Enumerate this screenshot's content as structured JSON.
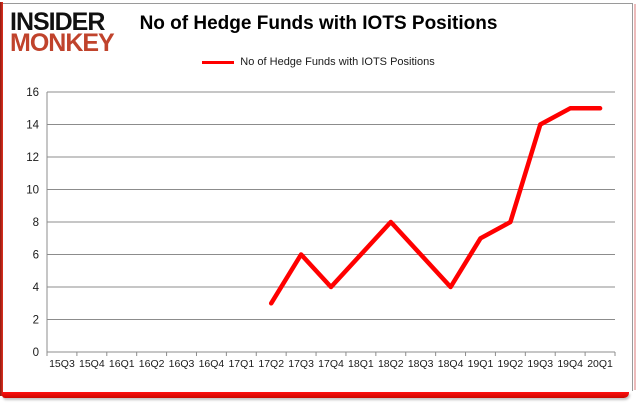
{
  "logo": {
    "line1": "INSIDER",
    "line2": "MONKEY"
  },
  "header": {
    "title": "No of Hedge Funds with IOTS Positions"
  },
  "legend": {
    "label": "No of Hedge Funds with IOTS Positions"
  },
  "colors": {
    "line": "#ff0000",
    "logo_red": "#c0432c",
    "grid": "#8c8c8c",
    "axis": "#8c8c8c",
    "tick_text": "#1a1a1a",
    "frame_red": "#e8110b"
  },
  "chart_data": {
    "type": "line",
    "title": "No of Hedge Funds with IOTS Positions",
    "categories": [
      "15Q3",
      "15Q4",
      "16Q1",
      "16Q2",
      "16Q3",
      "16Q4",
      "17Q1",
      "17Q2",
      "17Q3",
      "17Q4",
      "18Q1",
      "18Q2",
      "18Q3",
      "18Q4",
      "19Q1",
      "19Q2",
      "19Q3",
      "19Q4",
      "20Q1"
    ],
    "series": [
      {
        "name": "No of Hedge Funds with IOTS Positions",
        "color": "#ff0000",
        "values": [
          null,
          null,
          null,
          null,
          null,
          null,
          null,
          3,
          6,
          4,
          6,
          8,
          6,
          4,
          7,
          8,
          14,
          15,
          15
        ]
      }
    ],
    "xlabel": "",
    "ylabel": "",
    "ylim": [
      0,
      16
    ],
    "ytick_step": 2,
    "grid": true,
    "legend_position": "top"
  }
}
